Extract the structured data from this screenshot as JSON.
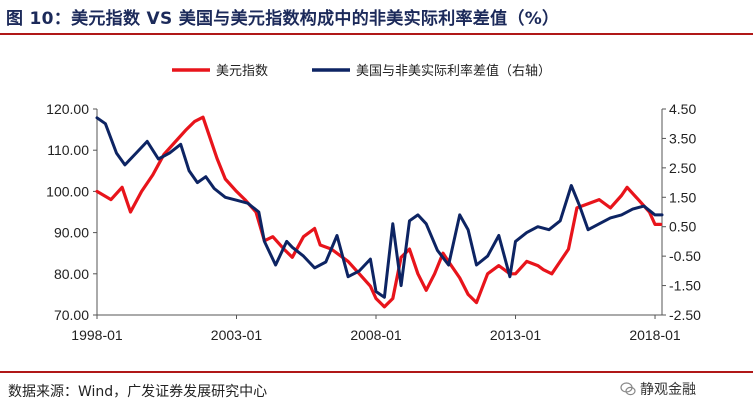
{
  "header": {
    "title": "图 10：美元指数 VS 美国与美元指数构成中的非美实际利率差值（%）"
  },
  "footer": {
    "source": "数据来源：Wind，广发证券发展研究中心",
    "watermark": "静观金融"
  },
  "chart_data": {
    "type": "line",
    "title": "图 10：美元指数 VS 美国与美元指数构成中的非美实际利率差值（%）",
    "x_tick_labels": [
      "1998-01",
      "2003-01",
      "2008-01",
      "2013-01",
      "2018-01"
    ],
    "x_range": [
      1998.0,
      2018.25
    ],
    "left_axis": {
      "range": [
        70,
        120
      ],
      "ticks": [
        "70.00",
        "80.00",
        "90.00",
        "100.00",
        "110.00",
        "120.00"
      ]
    },
    "right_axis": {
      "range": [
        -2.5,
        4.5
      ],
      "ticks": [
        "-2.50",
        "-1.50",
        "-0.50",
        "0.50",
        "1.50",
        "2.50",
        "3.50",
        "4.50"
      ]
    },
    "legend_position": "top-center",
    "series": [
      {
        "name": "美元指数",
        "axis": "left",
        "color": "#e8141b",
        "x": [
          1998.0,
          1998.5,
          1998.9,
          1999.2,
          1999.6,
          2000.0,
          2000.4,
          2000.8,
          2001.2,
          2001.5,
          2001.8,
          2002.0,
          2002.3,
          2002.6,
          2003.0,
          2003.3,
          2003.7,
          2004.0,
          2004.3,
          2004.7,
          2005.0,
          2005.4,
          2005.8,
          2006.0,
          2006.4,
          2006.8,
          2007.0,
          2007.4,
          2007.8,
          2008.0,
          2008.3,
          2008.6,
          2008.9,
          2009.2,
          2009.5,
          2009.8,
          2010.1,
          2010.4,
          2010.7,
          2011.0,
          2011.3,
          2011.6,
          2012.0,
          2012.4,
          2012.8,
          2013.0,
          2013.4,
          2013.8,
          2014.0,
          2014.3,
          2014.6,
          2014.9,
          2015.2,
          2015.6,
          2016.0,
          2016.4,
          2016.8,
          2017.0,
          2017.4,
          2017.8,
          2018.0,
          2018.2
        ],
        "values": [
          100,
          98,
          101,
          95,
          100,
          104,
          109,
          112,
          115,
          117,
          118,
          114,
          108,
          103,
          100,
          98,
          95,
          88,
          89,
          86,
          84,
          89,
          91,
          87,
          86,
          84,
          83,
          80,
          77,
          74,
          72,
          74,
          84,
          86,
          80,
          76,
          80,
          85,
          82,
          79,
          75,
          73,
          80,
          82,
          80,
          80,
          83,
          82,
          81,
          80,
          83,
          86,
          96,
          97,
          98,
          96,
          99,
          101,
          98,
          95,
          92,
          92
        ]
      },
      {
        "name": "美国与非美实际利率差值（右轴）",
        "axis": "right",
        "color": "#0d2463",
        "x": [
          1998.0,
          1998.3,
          1998.7,
          1999.0,
          1999.4,
          1999.8,
          2000.2,
          2000.6,
          2001.0,
          2001.3,
          2001.6,
          2001.9,
          2002.2,
          2002.6,
          2003.0,
          2003.4,
          2003.8,
          2004.0,
          2004.4,
          2004.8,
          2005.0,
          2005.4,
          2005.8,
          2006.2,
          2006.6,
          2007.0,
          2007.4,
          2007.8,
          2008.0,
          2008.3,
          2008.6,
          2008.9,
          2009.2,
          2009.5,
          2009.8,
          2010.2,
          2010.6,
          2011.0,
          2011.3,
          2011.6,
          2012.0,
          2012.4,
          2012.8,
          2013.0,
          2013.4,
          2013.8,
          2014.2,
          2014.6,
          2015.0,
          2015.3,
          2015.6,
          2016.0,
          2016.4,
          2016.8,
          2017.2,
          2017.6,
          2018.0,
          2018.25
        ],
        "values": [
          4.2,
          4.0,
          3.0,
          2.6,
          3.0,
          3.4,
          2.8,
          3.0,
          3.3,
          2.4,
          2.0,
          2.2,
          1.8,
          1.5,
          1.4,
          1.3,
          1.0,
          0.0,
          -0.8,
          0.0,
          -0.2,
          -0.5,
          -0.9,
          -0.7,
          0.2,
          -1.2,
          -1.0,
          -0.6,
          -1.7,
          -1.9,
          0.6,
          -1.5,
          0.7,
          0.9,
          0.6,
          -0.3,
          -0.8,
          0.9,
          0.4,
          -0.8,
          -0.5,
          0.2,
          -1.2,
          0.0,
          0.3,
          0.5,
          0.4,
          0.7,
          1.9,
          1.2,
          0.4,
          0.6,
          0.8,
          0.9,
          1.1,
          1.2,
          0.9,
          0.9
        ]
      }
    ]
  }
}
